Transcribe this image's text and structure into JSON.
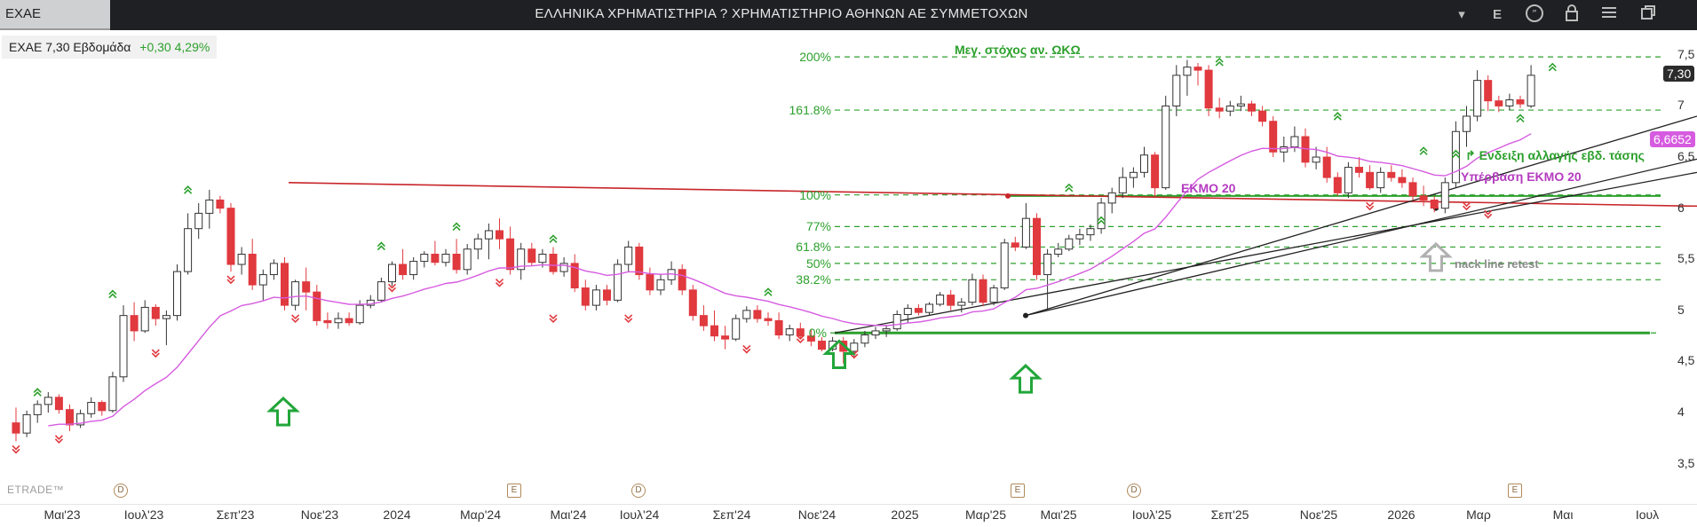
{
  "window": {
    "symbol_tab": "EXAE",
    "title": "ΕΛΛΗΝΙΚΑ ΧΡΗΜΑΤΙΣΤΗΡΙΑ ? ΧΡΗΜΑΤΙΣΤΗΡΙΟ ΑΘΗΝΩΝ ΑΕ ΣΥΜΜΕΤΟΧΩΝ",
    "toolbar": {
      "dropdown": "▾",
      "e_label": "E",
      "chat": "chat-icon",
      "lock": "lock-icon",
      "menu": "menu-icon",
      "restore": "restore-icon"
    }
  },
  "legend": {
    "symbol": "EXAE 7,30 Εβδομάδα",
    "change": "+0,30 4,29%"
  },
  "watermark": "ETRADE™",
  "colors": {
    "up": "#ffffff",
    "down": "#e0393e",
    "ema": "#d65be0",
    "fib": "#2ca02c",
    "resistance": "#c8262a",
    "trend": "#222222"
  },
  "chart_data": {
    "type": "candlestick",
    "timeframe": "Εβδομάδα",
    "x_ticks": [
      "Μαι'23",
      "Ιουλ'23",
      "Σεπ'23",
      "Νοε'23",
      "2024",
      "Μαρ'24",
      "Μαι'24",
      "Ιουλ'24",
      "Σεπ'24",
      "Νοε'24",
      "2025",
      "Μαρ'25",
      "Μαι'25",
      "Ιουλ'25",
      "Σεπ'25",
      "Νοε'25",
      "2026",
      "Μαρ",
      "Μαι",
      "Ιουλ"
    ],
    "y_ticks": [
      "7,5",
      "7",
      "6,5",
      "6",
      "5,5",
      "5",
      "4,5",
      "4",
      "3,5"
    ],
    "ylim": [
      3.35,
      7.62
    ],
    "last_price": "7,30",
    "ema_value": "6,6652",
    "ema_label": "EKMO 20",
    "fib_levels": [
      {
        "label": "200%",
        "value": 7.48
      },
      {
        "label": "161.8%",
        "value": 6.96
      },
      {
        "label": "100%",
        "value": 6.13
      },
      {
        "label": "77%",
        "value": 5.82
      },
      {
        "label": "61.8%",
        "value": 5.62
      },
      {
        "label": "50%",
        "value": 5.46
      },
      {
        "label": "38.2%",
        "value": 5.3
      },
      {
        "label": "0%",
        "value": 4.78
      }
    ],
    "annotations": {
      "target": "Μεγ. στόχος αν. ΩΚΩ",
      "ema_label": "EKMO 20",
      "trend_change": "Ενδειξη αλλαγής εβδ. τάσης",
      "ema_break": "Υπέρβαση ΕΚΜΟ 20",
      "retest": "nack line retest"
    },
    "candles": [
      {
        "o": 3.9,
        "h": 4.05,
        "l": 3.72,
        "c": 3.8
      },
      {
        "o": 3.8,
        "h": 4.02,
        "l": 3.76,
        "c": 3.98
      },
      {
        "o": 3.98,
        "h": 4.12,
        "l": 3.9,
        "c": 4.08
      },
      {
        "o": 4.08,
        "h": 4.2,
        "l": 4.0,
        "c": 4.15
      },
      {
        "o": 4.15,
        "h": 4.18,
        "l": 3.99,
        "c": 4.03
      },
      {
        "o": 4.03,
        "h": 4.08,
        "l": 3.82,
        "c": 3.88
      },
      {
        "o": 3.88,
        "h": 4.03,
        "l": 3.85,
        "c": 3.99
      },
      {
        "o": 3.99,
        "h": 4.15,
        "l": 3.95,
        "c": 4.1
      },
      {
        "o": 4.1,
        "h": 4.12,
        "l": 3.97,
        "c": 4.02
      },
      {
        "o": 4.02,
        "h": 4.4,
        "l": 4.0,
        "c": 4.35
      },
      {
        "o": 4.35,
        "h": 5.05,
        "l": 4.3,
        "c": 4.95
      },
      {
        "o": 4.95,
        "h": 5.08,
        "l": 4.7,
        "c": 4.8
      },
      {
        "o": 4.8,
        "h": 5.1,
        "l": 4.78,
        "c": 5.03
      },
      {
        "o": 5.03,
        "h": 5.06,
        "l": 4.85,
        "c": 4.92
      },
      {
        "o": 4.92,
        "h": 5.0,
        "l": 4.66,
        "c": 4.95
      },
      {
        "o": 4.95,
        "h": 5.45,
        "l": 4.9,
        "c": 5.38
      },
      {
        "o": 5.38,
        "h": 5.95,
        "l": 5.35,
        "c": 5.8
      },
      {
        "o": 5.8,
        "h": 6.05,
        "l": 5.7,
        "c": 5.95
      },
      {
        "o": 5.95,
        "h": 6.18,
        "l": 5.8,
        "c": 6.08
      },
      {
        "o": 6.08,
        "h": 6.12,
        "l": 5.95,
        "c": 6.0
      },
      {
        "o": 6.0,
        "h": 6.05,
        "l": 5.38,
        "c": 5.45
      },
      {
        "o": 5.45,
        "h": 5.62,
        "l": 5.35,
        "c": 5.55
      },
      {
        "o": 5.55,
        "h": 5.7,
        "l": 5.2,
        "c": 5.25
      },
      {
        "o": 5.25,
        "h": 5.4,
        "l": 5.1,
        "c": 5.35
      },
      {
        "o": 5.35,
        "h": 5.5,
        "l": 5.3,
        "c": 5.46
      },
      {
        "o": 5.46,
        "h": 5.52,
        "l": 5.0,
        "c": 5.05
      },
      {
        "o": 5.05,
        "h": 5.3,
        "l": 5.0,
        "c": 5.28
      },
      {
        "o": 5.28,
        "h": 5.42,
        "l": 5.0,
        "c": 5.18
      },
      {
        "o": 5.18,
        "h": 5.25,
        "l": 4.85,
        "c": 4.9
      },
      {
        "o": 4.9,
        "h": 4.98,
        "l": 4.82,
        "c": 4.88
      },
      {
        "o": 4.88,
        "h": 4.98,
        "l": 4.82,
        "c": 4.92
      },
      {
        "o": 4.92,
        "h": 4.98,
        "l": 4.85,
        "c": 4.88
      },
      {
        "o": 4.88,
        "h": 5.1,
        "l": 4.86,
        "c": 5.05
      },
      {
        "o": 5.05,
        "h": 5.15,
        "l": 5.02,
        "c": 5.1
      },
      {
        "o": 5.1,
        "h": 5.32,
        "l": 5.08,
        "c": 5.28
      },
      {
        "o": 5.28,
        "h": 5.48,
        "l": 5.24,
        "c": 5.45
      },
      {
        "o": 5.45,
        "h": 5.6,
        "l": 5.3,
        "c": 5.35
      },
      {
        "o": 5.35,
        "h": 5.52,
        "l": 5.3,
        "c": 5.48
      },
      {
        "o": 5.48,
        "h": 5.58,
        "l": 5.42,
        "c": 5.55
      },
      {
        "o": 5.55,
        "h": 5.68,
        "l": 5.44,
        "c": 5.47
      },
      {
        "o": 5.47,
        "h": 5.6,
        "l": 5.43,
        "c": 5.55
      },
      {
        "o": 5.55,
        "h": 5.7,
        "l": 5.36,
        "c": 5.4
      },
      {
        "o": 5.4,
        "h": 5.65,
        "l": 5.35,
        "c": 5.6
      },
      {
        "o": 5.6,
        "h": 5.75,
        "l": 5.5,
        "c": 5.7
      },
      {
        "o": 5.7,
        "h": 5.85,
        "l": 5.5,
        "c": 5.78
      },
      {
        "o": 5.78,
        "h": 5.9,
        "l": 5.6,
        "c": 5.7
      },
      {
        "o": 5.7,
        "h": 5.82,
        "l": 5.35,
        "c": 5.4
      },
      {
        "o": 5.4,
        "h": 5.66,
        "l": 5.3,
        "c": 5.6
      },
      {
        "o": 5.6,
        "h": 5.66,
        "l": 5.44,
        "c": 5.47
      },
      {
        "o": 5.47,
        "h": 5.6,
        "l": 5.42,
        "c": 5.55
      },
      {
        "o": 5.55,
        "h": 5.62,
        "l": 5.35,
        "c": 5.38
      },
      {
        "o": 5.38,
        "h": 5.52,
        "l": 5.33,
        "c": 5.46
      },
      {
        "o": 5.46,
        "h": 5.55,
        "l": 5.18,
        "c": 5.22
      },
      {
        "o": 5.22,
        "h": 5.3,
        "l": 5.0,
        "c": 5.05
      },
      {
        "o": 5.05,
        "h": 5.25,
        "l": 5.0,
        "c": 5.2
      },
      {
        "o": 5.2,
        "h": 5.25,
        "l": 5.05,
        "c": 5.1
      },
      {
        "o": 5.1,
        "h": 5.5,
        "l": 5.08,
        "c": 5.45
      },
      {
        "o": 5.45,
        "h": 5.68,
        "l": 5.38,
        "c": 5.62
      },
      {
        "o": 5.62,
        "h": 5.66,
        "l": 5.3,
        "c": 5.35
      },
      {
        "o": 5.35,
        "h": 5.42,
        "l": 5.15,
        "c": 5.2
      },
      {
        "o": 5.2,
        "h": 5.35,
        "l": 5.15,
        "c": 5.3
      },
      {
        "o": 5.3,
        "h": 5.48,
        "l": 5.25,
        "c": 5.4
      },
      {
        "o": 5.4,
        "h": 5.45,
        "l": 5.15,
        "c": 5.2
      },
      {
        "o": 5.2,
        "h": 5.25,
        "l": 4.9,
        "c": 4.95
      },
      {
        "o": 4.95,
        "h": 5.05,
        "l": 4.8,
        "c": 4.85
      },
      {
        "o": 4.85,
        "h": 5.0,
        "l": 4.7,
        "c": 4.75
      },
      {
        "o": 4.75,
        "h": 4.85,
        "l": 4.62,
        "c": 4.72
      },
      {
        "o": 4.72,
        "h": 4.96,
        "l": 4.7,
        "c": 4.92
      },
      {
        "o": 4.92,
        "h": 5.04,
        "l": 4.88,
        "c": 5.0
      },
      {
        "o": 5.0,
        "h": 5.05,
        "l": 4.88,
        "c": 4.92
      },
      {
        "o": 4.92,
        "h": 4.98,
        "l": 4.85,
        "c": 4.9
      },
      {
        "o": 4.9,
        "h": 4.98,
        "l": 4.72,
        "c": 4.76
      },
      {
        "o": 4.76,
        "h": 4.86,
        "l": 4.7,
        "c": 4.82
      },
      {
        "o": 4.82,
        "h": 4.88,
        "l": 4.72,
        "c": 4.75
      },
      {
        "o": 4.75,
        "h": 4.82,
        "l": 4.65,
        "c": 4.7
      },
      {
        "o": 4.7,
        "h": 4.74,
        "l": 4.6,
        "c": 4.62
      },
      {
        "o": 4.62,
        "h": 4.74,
        "l": 4.6,
        "c": 4.7
      },
      {
        "o": 4.7,
        "h": 4.74,
        "l": 4.48,
        "c": 4.6
      },
      {
        "o": 4.6,
        "h": 4.72,
        "l": 4.55,
        "c": 4.68
      },
      {
        "o": 4.68,
        "h": 4.8,
        "l": 4.64,
        "c": 4.76
      },
      {
        "o": 4.76,
        "h": 4.84,
        "l": 4.72,
        "c": 4.8
      },
      {
        "o": 4.8,
        "h": 4.86,
        "l": 4.74,
        "c": 4.82
      },
      {
        "o": 4.82,
        "h": 5.0,
        "l": 4.8,
        "c": 4.96
      },
      {
        "o": 4.96,
        "h": 5.06,
        "l": 4.88,
        "c": 5.02
      },
      {
        "o": 5.02,
        "h": 5.06,
        "l": 4.95,
        "c": 4.98
      },
      {
        "o": 4.98,
        "h": 5.08,
        "l": 4.95,
        "c": 5.06
      },
      {
        "o": 5.06,
        "h": 5.18,
        "l": 5.04,
        "c": 5.15
      },
      {
        "o": 5.15,
        "h": 5.2,
        "l": 5.0,
        "c": 5.05
      },
      {
        "o": 5.05,
        "h": 5.12,
        "l": 4.98,
        "c": 5.08
      },
      {
        "o": 5.08,
        "h": 5.36,
        "l": 5.05,
        "c": 5.3
      },
      {
        "o": 5.3,
        "h": 5.35,
        "l": 5.04,
        "c": 5.08
      },
      {
        "o": 5.08,
        "h": 5.25,
        "l": 5.05,
        "c": 5.22
      },
      {
        "o": 5.22,
        "h": 5.7,
        "l": 5.2,
        "c": 5.66
      },
      {
        "o": 5.66,
        "h": 5.72,
        "l": 5.58,
        "c": 5.62
      },
      {
        "o": 5.62,
        "h": 6.05,
        "l": 5.6,
        "c": 5.9
      },
      {
        "o": 5.9,
        "h": 5.95,
        "l": 5.3,
        "c": 5.35
      },
      {
        "o": 5.35,
        "h": 5.6,
        "l": 5.0,
        "c": 5.55
      },
      {
        "o": 5.55,
        "h": 5.66,
        "l": 5.52,
        "c": 5.6
      },
      {
        "o": 5.6,
        "h": 5.74,
        "l": 5.58,
        "c": 5.7
      },
      {
        "o": 5.7,
        "h": 5.8,
        "l": 5.64,
        "c": 5.74
      },
      {
        "o": 5.74,
        "h": 5.84,
        "l": 5.68,
        "c": 5.8
      },
      {
        "o": 5.8,
        "h": 6.1,
        "l": 5.75,
        "c": 6.05
      },
      {
        "o": 6.05,
        "h": 6.2,
        "l": 5.95,
        "c": 6.15
      },
      {
        "o": 6.15,
        "h": 6.4,
        "l": 6.1,
        "c": 6.3
      },
      {
        "o": 6.3,
        "h": 6.4,
        "l": 6.2,
        "c": 6.35
      },
      {
        "o": 6.35,
        "h": 6.6,
        "l": 6.3,
        "c": 6.52
      },
      {
        "o": 6.52,
        "h": 6.55,
        "l": 6.1,
        "c": 6.2
      },
      {
        "o": 6.2,
        "h": 7.1,
        "l": 6.18,
        "c": 7.0
      },
      {
        "o": 7.0,
        "h": 7.4,
        "l": 6.9,
        "c": 7.3
      },
      {
        "o": 7.3,
        "h": 7.45,
        "l": 7.1,
        "c": 7.38
      },
      {
        "o": 7.38,
        "h": 7.42,
        "l": 7.2,
        "c": 7.35
      },
      {
        "o": 7.35,
        "h": 7.4,
        "l": 6.9,
        "c": 6.98
      },
      {
        "o": 6.98,
        "h": 7.08,
        "l": 6.88,
        "c": 6.95
      },
      {
        "o": 6.95,
        "h": 7.05,
        "l": 6.9,
        "c": 7.0
      },
      {
        "o": 7.0,
        "h": 7.1,
        "l": 6.95,
        "c": 7.02
      },
      {
        "o": 7.02,
        "h": 7.05,
        "l": 6.9,
        "c": 6.95
      },
      {
        "o": 6.95,
        "h": 7.0,
        "l": 6.8,
        "c": 6.85
      },
      {
        "o": 6.85,
        "h": 6.9,
        "l": 6.5,
        "c": 6.55
      },
      {
        "o": 6.55,
        "h": 6.7,
        "l": 6.45,
        "c": 6.6
      },
      {
        "o": 6.6,
        "h": 6.8,
        "l": 6.55,
        "c": 6.7
      },
      {
        "o": 6.7,
        "h": 6.78,
        "l": 6.4,
        "c": 6.45
      },
      {
        "o": 6.45,
        "h": 6.6,
        "l": 6.38,
        "c": 6.5
      },
      {
        "o": 6.5,
        "h": 6.6,
        "l": 6.25,
        "c": 6.3
      },
      {
        "o": 6.3,
        "h": 6.35,
        "l": 6.12,
        "c": 6.15
      },
      {
        "o": 6.15,
        "h": 6.45,
        "l": 6.1,
        "c": 6.4
      },
      {
        "o": 6.4,
        "h": 6.5,
        "l": 6.3,
        "c": 6.35
      },
      {
        "o": 6.35,
        "h": 6.42,
        "l": 6.18,
        "c": 6.2
      },
      {
        "o": 6.2,
        "h": 6.4,
        "l": 6.15,
        "c": 6.35
      },
      {
        "o": 6.35,
        "h": 6.42,
        "l": 6.26,
        "c": 6.3
      },
      {
        "o": 6.3,
        "h": 6.38,
        "l": 6.2,
        "c": 6.25
      },
      {
        "o": 6.25,
        "h": 6.3,
        "l": 6.08,
        "c": 6.12
      },
      {
        "o": 6.12,
        "h": 6.22,
        "l": 6.02,
        "c": 6.08
      },
      {
        "o": 6.08,
        "h": 6.12,
        "l": 5.96,
        "c": 6.0
      },
      {
        "o": 6.0,
        "h": 6.3,
        "l": 5.95,
        "c": 6.25
      },
      {
        "o": 6.25,
        "h": 6.85,
        "l": 6.2,
        "c": 6.75
      },
      {
        "o": 6.75,
        "h": 7.0,
        "l": 6.6,
        "c": 6.9
      },
      {
        "o": 6.9,
        "h": 7.35,
        "l": 6.85,
        "c": 7.25
      },
      {
        "o": 7.25,
        "h": 7.3,
        "l": 6.95,
        "c": 7.05
      },
      {
        "o": 7.05,
        "h": 7.1,
        "l": 6.94,
        "c": 7.0
      },
      {
        "o": 7.0,
        "h": 7.12,
        "l": 6.96,
        "c": 7.06
      },
      {
        "o": 7.06,
        "h": 7.1,
        "l": 6.98,
        "c": 7.02
      },
      {
        "o": 7.0,
        "h": 7.4,
        "l": 6.98,
        "c": 7.3
      }
    ]
  }
}
